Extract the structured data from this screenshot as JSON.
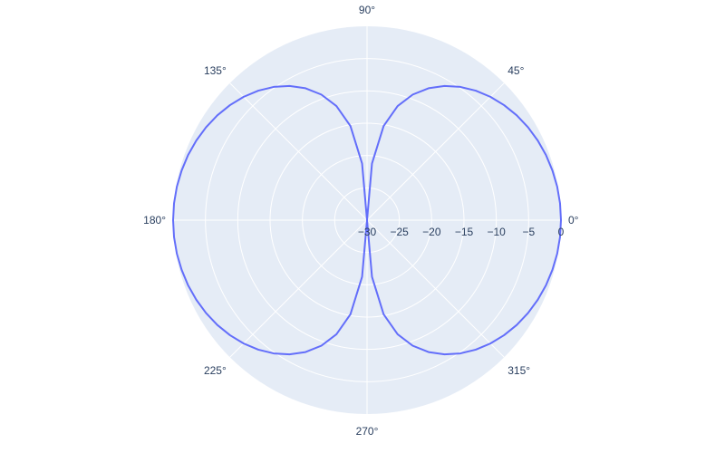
{
  "chart_data": {
    "type": "line",
    "subtype": "polar",
    "title": "",
    "series": [
      {
        "name": "",
        "theta_deg": [
          0,
          5,
          10,
          15,
          20,
          25,
          30,
          35,
          40,
          45,
          50,
          55,
          60,
          65,
          70,
          75,
          80,
          85,
          89.9,
          90.1,
          95,
          100,
          105,
          110,
          115,
          120,
          125,
          130,
          135,
          140,
          145,
          150,
          155,
          160,
          165,
          170,
          175,
          180,
          185,
          190,
          195,
          200,
          205,
          210,
          215,
          220,
          225,
          230,
          235,
          240,
          245,
          250,
          255,
          260,
          265,
          269.9,
          270.1,
          275,
          280,
          285,
          290,
          295,
          300,
          305,
          310,
          315,
          320,
          325,
          330,
          335,
          340,
          345,
          350,
          355,
          360
        ],
        "r": [
          0,
          -0.03,
          -0.13,
          -0.31,
          -0.54,
          -0.86,
          -1.25,
          -1.73,
          -2.32,
          -3.01,
          -3.84,
          -4.83,
          -6.02,
          -7.48,
          -9.32,
          -11.72,
          -15.2,
          -21.2,
          -30,
          -30,
          -21.2,
          -15.2,
          -11.72,
          -9.32,
          -7.48,
          -6.02,
          -4.83,
          -3.84,
          -3.01,
          -2.32,
          -1.73,
          -1.25,
          -0.86,
          -0.54,
          -0.31,
          -0.13,
          -0.03,
          0,
          -0.03,
          -0.13,
          -0.31,
          -0.54,
          -0.86,
          -1.25,
          -1.73,
          -2.32,
          -3.01,
          -3.84,
          -4.83,
          -6.02,
          -7.48,
          -9.32,
          -11.72,
          -15.2,
          -21.2,
          -30,
          -30,
          -21.2,
          -15.2,
          -11.72,
          -9.32,
          -7.48,
          -6.02,
          -4.83,
          -3.84,
          -3.01,
          -2.32,
          -1.73,
          -1.25,
          -0.86,
          -0.54,
          -0.31,
          -0.13,
          -0.03,
          0
        ]
      }
    ],
    "radial_axis": {
      "range": [
        -30,
        0
      ],
      "tick_values": [
        -30,
        -25,
        -20,
        -15,
        -10,
        -5,
        0
      ],
      "tick_labels": [
        "−30",
        "−25",
        "−20",
        "−15",
        "−10",
        "−5",
        "0"
      ]
    },
    "angular_axis": {
      "tick_values": [
        0,
        45,
        90,
        135,
        180,
        225,
        270,
        315
      ],
      "tick_labels": [
        "0°",
        "45°",
        "90°",
        "135°",
        "180°",
        "225°",
        "270°",
        "315°"
      ]
    },
    "grid": true,
    "legend": "none",
    "colors": {
      "background": "#e5ecf6",
      "grid": "#ffffff",
      "line": "#636efa",
      "text": "#2a3f5f"
    }
  }
}
